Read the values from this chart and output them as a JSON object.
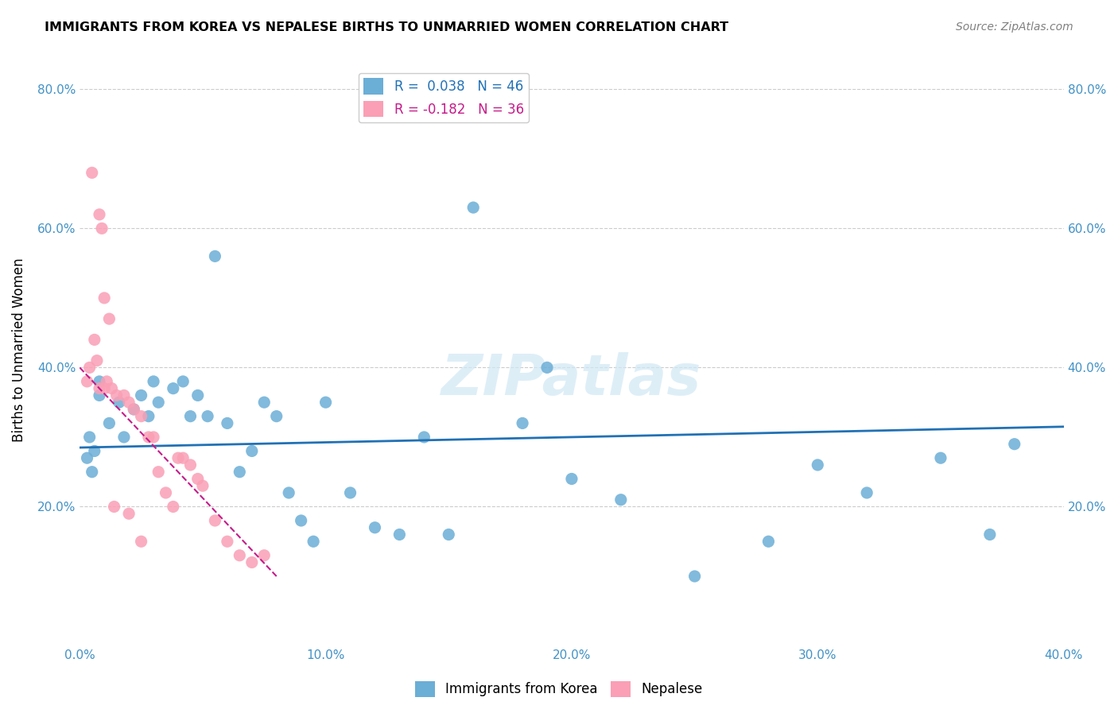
{
  "title": "IMMIGRANTS FROM KOREA VS NEPALESE BIRTHS TO UNMARRIED WOMEN CORRELATION CHART",
  "source": "Source: ZipAtlas.com",
  "xlabel_bottom": "",
  "ylabel": "Births to Unmarried Women",
  "x_tick_labels": [
    "0.0%",
    "10.0%",
    "20.0%",
    "30.0%",
    "40.0%"
  ],
  "y_tick_labels": [
    "20.0%",
    "40.0%",
    "60.0%",
    "80.0%"
  ],
  "x_min": 0.0,
  "x_max": 0.4,
  "y_min": 0.0,
  "y_max": 0.85,
  "legend1_label": "R =  0.038   N = 46",
  "legend2_label": "R = -0.182   N = 36",
  "legend_xlabel": "Immigrants from Korea",
  "legend_ylabel": "Nepalese",
  "blue_color": "#6baed6",
  "pink_color": "#fa9fb5",
  "trend_blue_color": "#2171b5",
  "trend_pink_color": "#c51b8a",
  "watermark": "ZIPatlas",
  "title_fontsize": 12,
  "axis_label_color": "#4292c6",
  "tick_label_color": "#4292c6",
  "blue_scatter_x": [
    0.008,
    0.003,
    0.006,
    0.004,
    0.005,
    0.012,
    0.008,
    0.016,
    0.022,
    0.018,
    0.025,
    0.03,
    0.032,
    0.028,
    0.038,
    0.042,
    0.048,
    0.052,
    0.055,
    0.045,
    0.06,
    0.065,
    0.07,
    0.075,
    0.08,
    0.085,
    0.09,
    0.095,
    0.1,
    0.11,
    0.12,
    0.13,
    0.14,
    0.15,
    0.18,
    0.2,
    0.22,
    0.25,
    0.28,
    0.3,
    0.32,
    0.35,
    0.37,
    0.38,
    0.16,
    0.19
  ],
  "blue_scatter_y": [
    0.36,
    0.27,
    0.28,
    0.3,
    0.25,
    0.32,
    0.38,
    0.35,
    0.34,
    0.3,
    0.36,
    0.38,
    0.35,
    0.33,
    0.37,
    0.38,
    0.36,
    0.33,
    0.56,
    0.33,
    0.32,
    0.25,
    0.28,
    0.35,
    0.33,
    0.22,
    0.18,
    0.15,
    0.35,
    0.22,
    0.17,
    0.16,
    0.3,
    0.16,
    0.32,
    0.24,
    0.21,
    0.1,
    0.15,
    0.26,
    0.22,
    0.27,
    0.16,
    0.29,
    0.63,
    0.4
  ],
  "pink_scatter_x": [
    0.005,
    0.008,
    0.009,
    0.01,
    0.012,
    0.006,
    0.007,
    0.004,
    0.003,
    0.011,
    0.013,
    0.015,
    0.018,
    0.02,
    0.022,
    0.025,
    0.028,
    0.03,
    0.032,
    0.035,
    0.038,
    0.04,
    0.042,
    0.045,
    0.048,
    0.05,
    0.055,
    0.06,
    0.065,
    0.07,
    0.075,
    0.008,
    0.01,
    0.014,
    0.02,
    0.025
  ],
  "pink_scatter_y": [
    0.68,
    0.62,
    0.6,
    0.5,
    0.47,
    0.44,
    0.41,
    0.4,
    0.38,
    0.38,
    0.37,
    0.36,
    0.36,
    0.35,
    0.34,
    0.33,
    0.3,
    0.3,
    0.25,
    0.22,
    0.2,
    0.27,
    0.27,
    0.26,
    0.24,
    0.23,
    0.18,
    0.15,
    0.13,
    0.12,
    0.13,
    0.37,
    0.37,
    0.2,
    0.19,
    0.15
  ],
  "blue_trend_x": [
    0.0,
    0.4
  ],
  "blue_trend_y": [
    0.285,
    0.315
  ],
  "pink_trend_x": [
    0.0,
    0.08
  ],
  "pink_trend_y": [
    0.4,
    0.1
  ],
  "grid_color": "#cccccc",
  "background_color": "#ffffff"
}
